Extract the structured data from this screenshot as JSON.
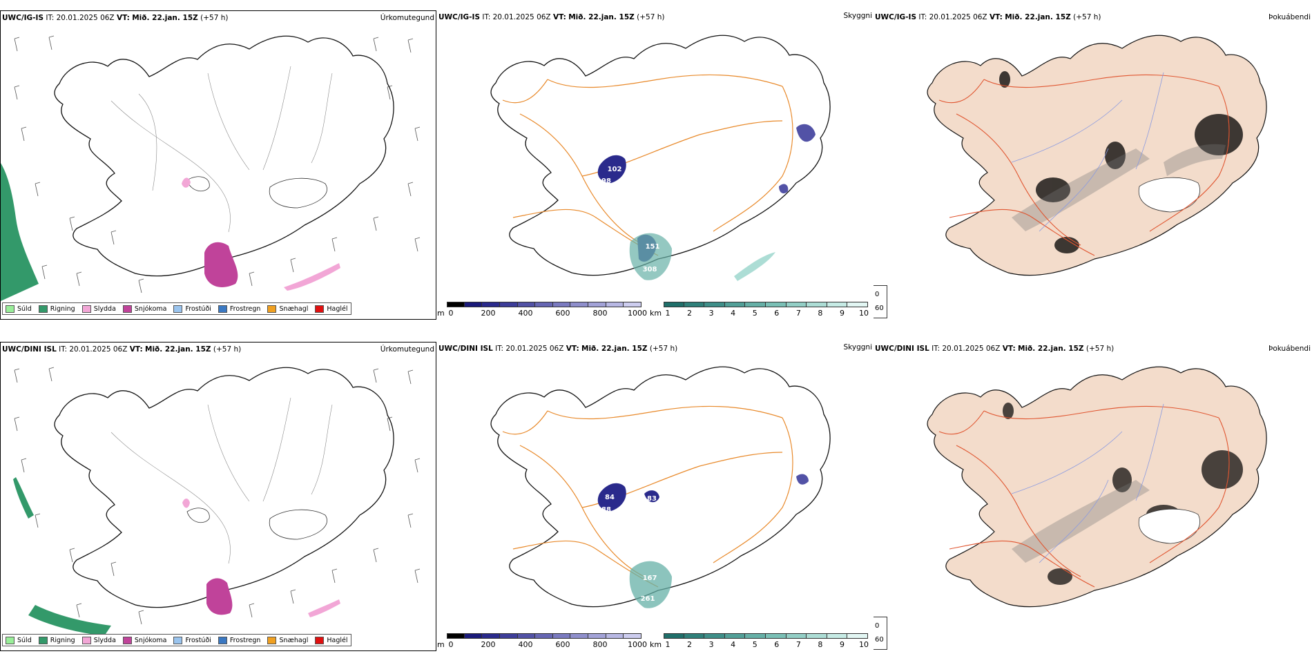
{
  "rows": [
    {
      "model": "UWC/IG-IS",
      "it_label": "IT:",
      "it_value": "20.01.2025 06Z",
      "vt_label": "VT:",
      "vt_value": "Mið. 22.jan. 15Z",
      "offset": "(+57 h)",
      "labels": [
        {
          "text": "102"
        },
        {
          "text": "98"
        },
        {
          "text": "151"
        },
        {
          "text": "308"
        }
      ]
    },
    {
      "model": "UWC/DINI ISL",
      "it_label": "IT:",
      "it_value": "20.01.2025 06Z",
      "vt_label": "VT:",
      "vt_value": "Mið. 22.jan. 15Z",
      "offset": "(+57 h)",
      "labels": [
        {
          "text": "84"
        },
        {
          "text": "88"
        },
        {
          "text": "83"
        },
        {
          "text": "167"
        },
        {
          "text": "261"
        }
      ]
    }
  ],
  "panel_titles": {
    "precip": "Úrkomutegund",
    "vis": "Skyggni",
    "fog": "Þokuábendi"
  },
  "precip_legend": [
    {
      "label": "Súld",
      "color": "#99ee99"
    },
    {
      "label": "Rigning",
      "color": "#33996a"
    },
    {
      "label": "Slydda",
      "color": "#f2a6d6"
    },
    {
      "label": "Snjókoma",
      "color": "#c0439a"
    },
    {
      "label": "Frostúði",
      "color": "#9ac4ee"
    },
    {
      "label": "Frostregn",
      "color": "#3a78c2"
    },
    {
      "label": "Snæhagl",
      "color": "#f0a020"
    },
    {
      "label": "Haglél",
      "color": "#e01010"
    }
  ],
  "cloud_bar": {
    "unit": "m",
    "ticks": [
      "0",
      "200",
      "400",
      "600",
      "800",
      "1000"
    ],
    "colors": [
      "#000000",
      "#1a1a7a",
      "#2a2a8c",
      "#3d3d99",
      "#5252a6",
      "#6666b3",
      "#7a7ac0",
      "#8f8fcc",
      "#a3a3d8",
      "#b8b8e4",
      "#cdcdef"
    ]
  },
  "vis_bar": {
    "unit": "km",
    "ticks": [
      "1",
      "2",
      "3",
      "4",
      "5",
      "6",
      "7",
      "8",
      "9",
      "10"
    ],
    "colors": [
      "#1f6f6a",
      "#2f807a",
      "#3f8f89",
      "#52a098",
      "#66b0a7",
      "#7ac0b6",
      "#93cfc6",
      "#acddd5",
      "#c6ebe5",
      "#e2f6f3"
    ]
  },
  "fog_legend": {
    "items": [
      {
        "label": "0",
        "color": "#000000"
      },
      {
        "label": "60",
        "color": "#ffffff"
      }
    ]
  },
  "colors": {
    "coast": "#111111",
    "rivers": "#888888",
    "roads": "#e8892a",
    "fog_land": "#f3dccb",
    "fog_roads": "#e05530",
    "fog_rivers": "#8a9ae0",
    "low_cloud": "#2a2a8c"
  }
}
